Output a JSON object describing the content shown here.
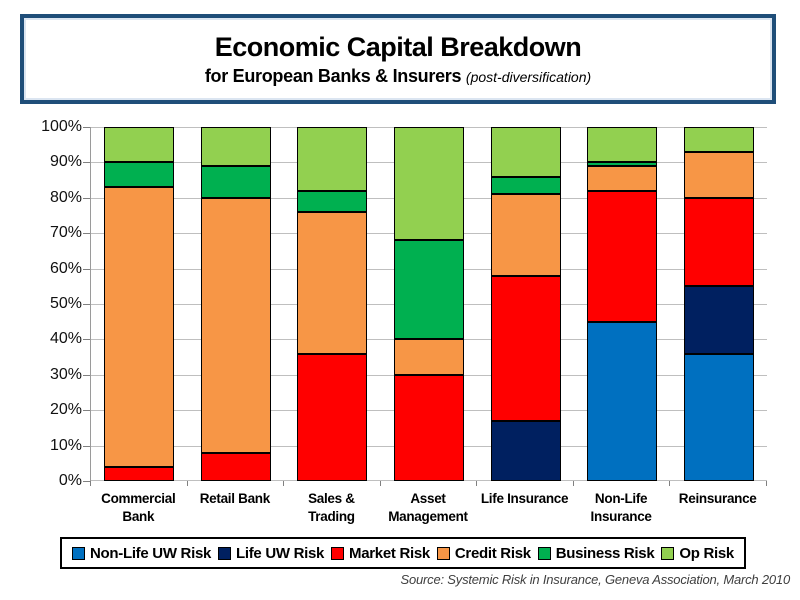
{
  "title": {
    "main": "Economic Capital Breakdown",
    "subtitle": "for European Banks & Insurers",
    "subtitle_note": "(post-diversification)"
  },
  "source": "Source:  Systemic Risk in Insurance, Geneva Association,  March 2010",
  "colors": {
    "title_border": "#1F4E79",
    "gridline": "#BFBFBF",
    "axis": "#808080"
  },
  "chart_data": {
    "type": "bar",
    "stacked": true,
    "orientation": "vertical",
    "unit": "percent",
    "ylim": [
      0,
      100
    ],
    "grid": true,
    "legend_position": "bottom",
    "y_tick_labels": [
      "100%",
      "90%",
      "80%",
      "70%",
      "60%",
      "50%",
      "40%",
      "30%",
      "20%",
      "10%",
      "0%"
    ],
    "categories": [
      "Commercial Bank",
      "Retail Bank",
      "Sales & Trading",
      "Asset Management",
      "Life Insurance",
      "Non-Life Insurance",
      "Reinsurance"
    ],
    "series": [
      {
        "name": "Non-Life UW Risk",
        "color": "#0070C0",
        "values": [
          0,
          0,
          0,
          0,
          0,
          45,
          36
        ]
      },
      {
        "name": "Life UW Risk",
        "color": "#002060",
        "values": [
          0,
          0,
          0,
          0,
          17,
          0,
          19
        ]
      },
      {
        "name": "Market Risk",
        "color": "#FF0000",
        "values": [
          4,
          8,
          36,
          30,
          41,
          37,
          25
        ]
      },
      {
        "name": "Credit Risk",
        "color": "#F79646",
        "values": [
          79,
          72,
          40,
          10,
          23,
          7,
          13
        ]
      },
      {
        "name": "Business Risk",
        "color": "#00B050",
        "values": [
          7,
          9,
          6,
          28,
          5,
          1,
          0
        ]
      },
      {
        "name": "Op Risk",
        "color": "#92D050",
        "values": [
          10,
          11,
          18,
          32,
          14,
          10,
          7
        ]
      }
    ]
  }
}
